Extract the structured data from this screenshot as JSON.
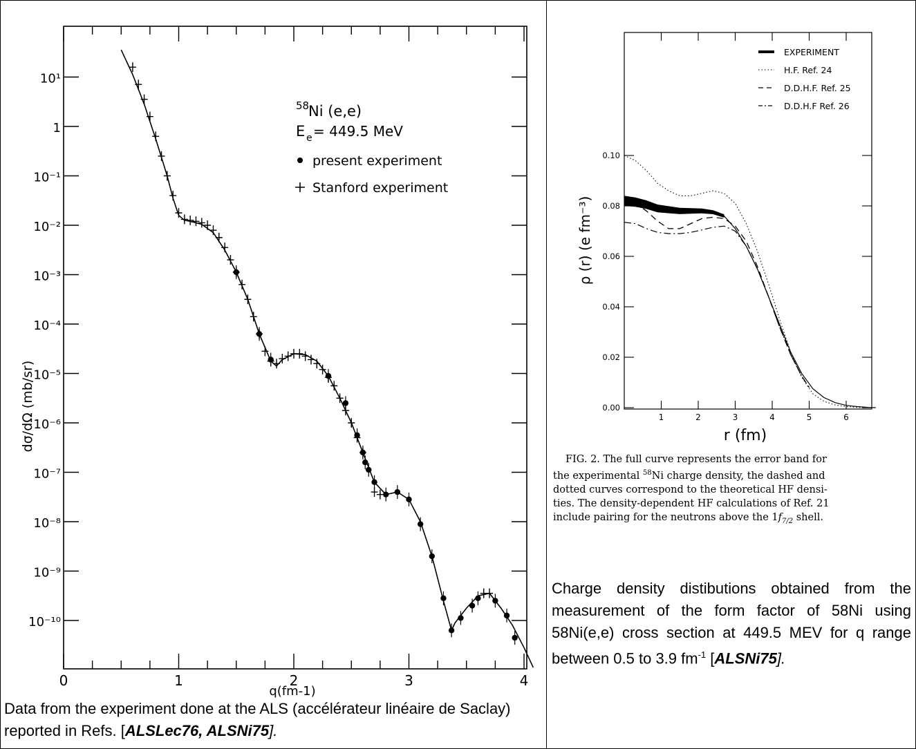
{
  "chart_data": [
    {
      "type": "scatter",
      "title": "",
      "xlabel": "q(fm-1)",
      "ylabel": "dσ/dΩ (mb/sr)",
      "xlim": [
        0,
        4.3
      ],
      "ylim_log10": [
        -11,
        2
      ],
      "y_scale": "log",
      "x_ticks": [
        0,
        1,
        2,
        3,
        4
      ],
      "y_ticks": [
        {
          "label": "10¹",
          "exp": 1
        },
        {
          "label": "1",
          "exp": 0
        },
        {
          "label": "10⁻¹",
          "exp": -1
        },
        {
          "label": "10⁻²",
          "exp": -2
        },
        {
          "label": "10⁻³",
          "exp": -3
        },
        {
          "label": "10⁻⁴",
          "exp": -4
        },
        {
          "label": "10⁻⁵",
          "exp": -5
        },
        {
          "label": "10⁻⁶",
          "exp": -6
        },
        {
          "label": "10⁻⁷",
          "exp": -7
        },
        {
          "label": "10⁻⁸",
          "exp": -8
        },
        {
          "label": "10⁻⁹",
          "exp": -9
        },
        {
          "label": "10⁻¹⁰",
          "exp": -10
        }
      ],
      "annotations": {
        "reaction_sup": "58",
        "reaction": "Ni (e,e)",
        "energy_main": "E",
        "energy_sub": "e",
        "energy_val": "= 449.5 MeV",
        "legend_present": "present experiment",
        "legend_stanford": "Stanford experiment",
        "legend_placement": "top-right"
      },
      "series": [
        {
          "name": "",
          "kind": "curve",
          "x": [
            0.5,
            0.6,
            0.7,
            0.8,
            0.9,
            0.95,
            1.0,
            1.05,
            1.1,
            1.2,
            1.3,
            1.4,
            1.5,
            1.6,
            1.7,
            1.8,
            1.85,
            1.9,
            2.0,
            2.1,
            2.2,
            2.3,
            2.4,
            2.5,
            2.6,
            2.7,
            2.8,
            2.9,
            3.0,
            3.1,
            3.2,
            3.3,
            3.37,
            3.4,
            3.45,
            3.5,
            3.6,
            3.7,
            3.8,
            3.9,
            4.0,
            4.08
          ],
          "log10_y": [
            1.55,
            1.05,
            0.45,
            -0.25,
            -1.0,
            -1.45,
            -1.8,
            -1.9,
            -1.92,
            -1.98,
            -2.15,
            -2.5,
            -2.95,
            -3.5,
            -4.2,
            -4.75,
            -4.85,
            -4.72,
            -4.6,
            -4.62,
            -4.75,
            -5.05,
            -5.5,
            -6.0,
            -6.6,
            -7.2,
            -7.45,
            -7.4,
            -7.55,
            -8.0,
            -8.7,
            -9.6,
            -10.2,
            -10.05,
            -9.9,
            -9.75,
            -9.5,
            -9.45,
            -9.75,
            -10.1,
            -10.55,
            -10.95
          ]
        },
        {
          "name": "Stanford experiment",
          "kind": "plus",
          "x": [
            0.6,
            0.65,
            0.7,
            0.75,
            0.8,
            0.85,
            0.9,
            0.95,
            1.0,
            1.05,
            1.1,
            1.15,
            1.2,
            1.25,
            1.3,
            1.35,
            1.4,
            1.45,
            1.5,
            1.55,
            1.6,
            1.65,
            1.7,
            1.75,
            1.8,
            1.85,
            1.9,
            1.95,
            2.0,
            2.05,
            2.1,
            2.15,
            2.2,
            2.25,
            2.3,
            2.35,
            2.4,
            2.45,
            2.5,
            2.55,
            2.6,
            2.7,
            2.75,
            3.65,
            3.7
          ],
          "log10_y": [
            1.2,
            0.85,
            0.55,
            0.2,
            -0.2,
            -0.6,
            -1.0,
            -1.4,
            -1.75,
            -1.88,
            -1.9,
            -1.92,
            -1.95,
            -2.0,
            -2.1,
            -2.25,
            -2.45,
            -2.7,
            -2.95,
            -3.2,
            -3.5,
            -3.85,
            -4.2,
            -4.55,
            -4.75,
            -4.8,
            -4.7,
            -4.65,
            -4.6,
            -4.6,
            -4.65,
            -4.72,
            -4.8,
            -4.92,
            -5.08,
            -5.25,
            -5.5,
            -5.75,
            -6.0,
            -6.3,
            -6.6,
            -7.4,
            -7.45,
            -9.45,
            -9.45
          ]
        },
        {
          "name": "present experiment",
          "kind": "dot",
          "x": [
            1.5,
            1.7,
            1.8,
            2.3,
            2.45,
            2.55,
            2.6,
            2.62,
            2.65,
            2.7,
            2.8,
            2.9,
            3.0,
            3.1,
            3.2,
            3.3,
            3.37,
            3.45,
            3.55,
            3.6,
            3.75,
            3.85,
            3.92
          ],
          "log10_y": [
            -2.95,
            -4.2,
            -4.72,
            -5.05,
            -5.6,
            -6.25,
            -6.6,
            -6.8,
            -6.95,
            -7.2,
            -7.45,
            -7.4,
            -7.55,
            -8.05,
            -8.7,
            -9.55,
            -10.2,
            -9.95,
            -9.7,
            -9.55,
            -9.6,
            -9.9,
            -10.35
          ]
        }
      ]
    },
    {
      "type": "line",
      "title": "",
      "xlabel": "r (fm)",
      "ylabel": "ρ (r) (e fm⁻³)",
      "xlim": [
        0,
        7
      ],
      "ylim": [
        0,
        0.12
      ],
      "x_ticks": [
        "1",
        "2",
        "3",
        "4",
        "5",
        "6"
      ],
      "y_ticks": [
        {
          "label": "0.00",
          "v": 0.0
        },
        {
          "label": "0.02",
          "v": 0.02
        },
        {
          "label": "0.04",
          "v": 0.04
        },
        {
          "label": "0.06",
          "v": 0.06
        },
        {
          "label": "0.08",
          "v": 0.08
        },
        {
          "label": "0.10",
          "v": 0.1
        }
      ],
      "legend_placement": "top-right",
      "series": [
        {
          "name": "EXPERIMENT",
          "style": "thick",
          "x": [
            0.0,
            0.3,
            0.6,
            0.9,
            1.2,
            1.5,
            1.8,
            2.1,
            2.4,
            2.7,
            3.0,
            3.3,
            3.6,
            3.9,
            4.2,
            4.5,
            4.8,
            5.1,
            5.4,
            5.7,
            6.0,
            6.3,
            6.6,
            6.8
          ],
          "y": [
            0.082,
            0.0815,
            0.0805,
            0.079,
            0.0785,
            0.078,
            0.078,
            0.078,
            0.0775,
            0.076,
            0.071,
            0.064,
            0.055,
            0.044,
            0.033,
            0.022,
            0.0135,
            0.0075,
            0.004,
            0.002,
            0.0009,
            0.0004,
            0.0001,
            0.0
          ]
        },
        {
          "name": "H.F. Ref. 24",
          "style": "dotted",
          "x": [
            0.0,
            0.3,
            0.6,
            0.9,
            1.2,
            1.5,
            1.8,
            2.1,
            2.4,
            2.7,
            3.0,
            3.3,
            3.6,
            3.9,
            4.2,
            4.5,
            4.8,
            5.1,
            5.4,
            5.7,
            6.0,
            6.3,
            6.6
          ],
          "y": [
            0.1,
            0.098,
            0.094,
            0.089,
            0.086,
            0.084,
            0.084,
            0.085,
            0.086,
            0.085,
            0.081,
            0.073,
            0.062,
            0.049,
            0.035,
            0.022,
            0.012,
            0.0055,
            0.0025,
            0.0011,
            0.0004,
            0.0001,
            0.0
          ]
        },
        {
          "name": "D.D.H.F. Ref. 25",
          "style": "dashed",
          "x": [
            0.0,
            0.3,
            0.6,
            0.9,
            1.2,
            1.5,
            1.8,
            2.1,
            2.4,
            2.7,
            3.0,
            3.3,
            3.6,
            3.9,
            4.2,
            4.5,
            4.8,
            5.0
          ],
          "y": [
            0.082,
            0.081,
            0.078,
            0.074,
            0.071,
            0.071,
            0.073,
            0.075,
            0.0755,
            0.075,
            0.072,
            0.066,
            0.056,
            0.044,
            0.032,
            0.021,
            0.0125,
            0.008
          ]
        },
        {
          "name": "D.D.H.F Ref. 26",
          "style": "dashdot",
          "x": [
            0.0,
            0.3,
            0.6,
            0.9,
            1.2,
            1.5,
            1.8,
            2.1,
            2.4,
            2.7,
            3.0,
            3.3,
            3.6,
            3.9,
            4.2,
            4.5,
            4.8,
            5.0
          ],
          "y": [
            0.0735,
            0.073,
            0.071,
            0.0695,
            0.069,
            0.069,
            0.0695,
            0.0705,
            0.0715,
            0.072,
            0.07,
            0.064,
            0.055,
            0.044,
            0.032,
            0.021,
            0.0125,
            0.008
          ]
        }
      ]
    }
  ],
  "fig_caption": {
    "line1": "FIG. 2.  The full curve represents the error band for",
    "line2a": "the experimental ",
    "line2sup": "58",
    "line2b": "Ni charge density, the dashed and",
    "line3": "dotted curves correspond to the theoretical HF densi-",
    "line4": "ties.  The density-dependent HF calculations of Ref. 21",
    "line5a": "include pairing for the neutrons above the 1",
    "line5f": "f",
    "line5sub": "7/2",
    "line5b": " shell."
  },
  "left_caption": {
    "text": "Data from the experiment done at the ALS (accélérateur linéaire de Saclay) reported in Refs. [",
    "refs": "ALSLec76, ALSNi75",
    "end": "]."
  },
  "right_caption": {
    "text": "Charge density distibutions obtained from the measurement of the form factor of 58Ni using 58Ni(e,e) cross section at 449.5 MEV for q range between 0.5 to 3.9 fm",
    "sup": "-1",
    "open": " [",
    "ref": "ALSNi75",
    "end": "]."
  }
}
